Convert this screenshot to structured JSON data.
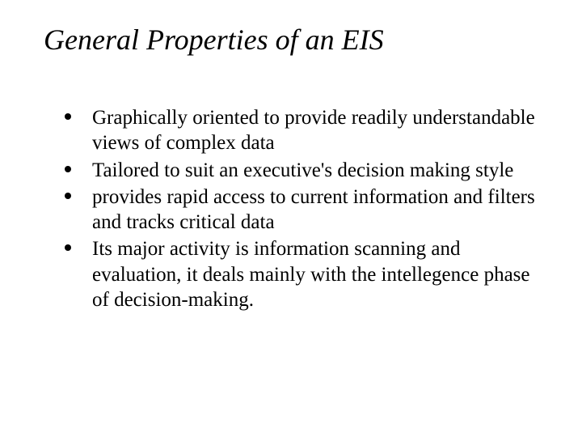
{
  "title": "General Properties of an EIS",
  "bullets": [
    "Graphically oriented to provide readily understandable views of complex data",
    "Tailored to suit an executive's decision making style",
    " provides rapid access to current information and filters and tracks critical data",
    "Its major activity is information scanning and evaluation, it deals mainly with the intellegence phase of decision-making."
  ],
  "colors": {
    "background": "#ffffff",
    "text": "#000000",
    "bullet": "#000000"
  },
  "typography": {
    "title_fontsize": 36,
    "title_style": "italic",
    "body_fontsize": 25,
    "font_family": "Times New Roman"
  }
}
